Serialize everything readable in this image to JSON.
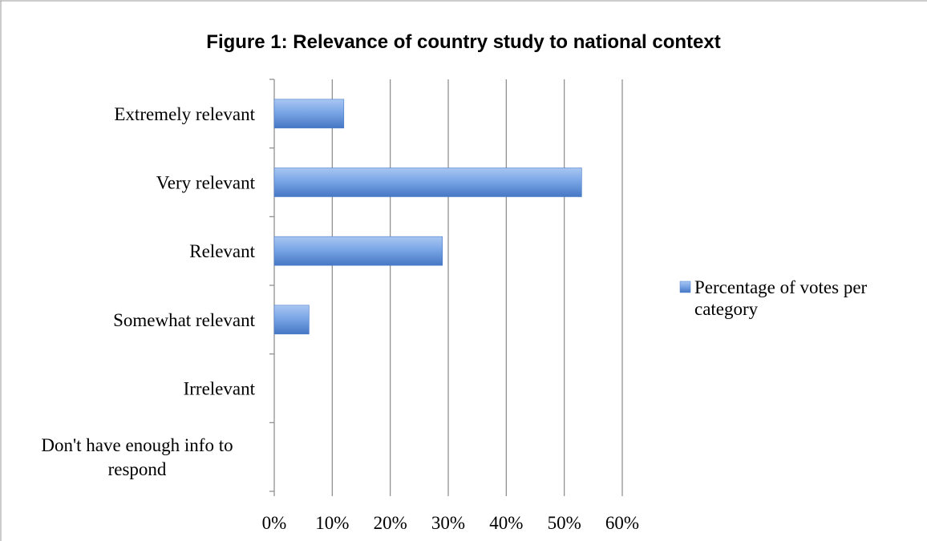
{
  "chart_data": {
    "type": "bar",
    "orientation": "horizontal",
    "title": "Figure 1: Relevance of country study to national context",
    "categories": [
      [
        "Extremely relevant"
      ],
      [
        "Very relevant"
      ],
      [
        "Relevant"
      ],
      [
        "Somewhat relevant"
      ],
      [
        "Irrelevant"
      ],
      [
        "Don't have enough info to",
        "respond"
      ]
    ],
    "series": [
      {
        "name": "Percentage of votes per category",
        "values": [
          0.12,
          0.53,
          0.29,
          0.06,
          0,
          0
        ],
        "color": "#5b8fdc"
      }
    ],
    "xlim": [
      0,
      0.6
    ],
    "x_ticks": [
      "0%",
      "10%",
      "20%",
      "30%",
      "40%",
      "50%",
      "60%"
    ],
    "grid": true,
    "legend": {
      "position": "right",
      "label_lines": [
        "Percentage of votes per",
        "category"
      ]
    },
    "xlabel": "",
    "ylabel": ""
  },
  "colors": {
    "bar_light": "#a7c4f0",
    "bar_mid": "#5b8fdc",
    "bar_dark": "#4a7cc9",
    "grid": "#888888",
    "frame": "#999999"
  }
}
